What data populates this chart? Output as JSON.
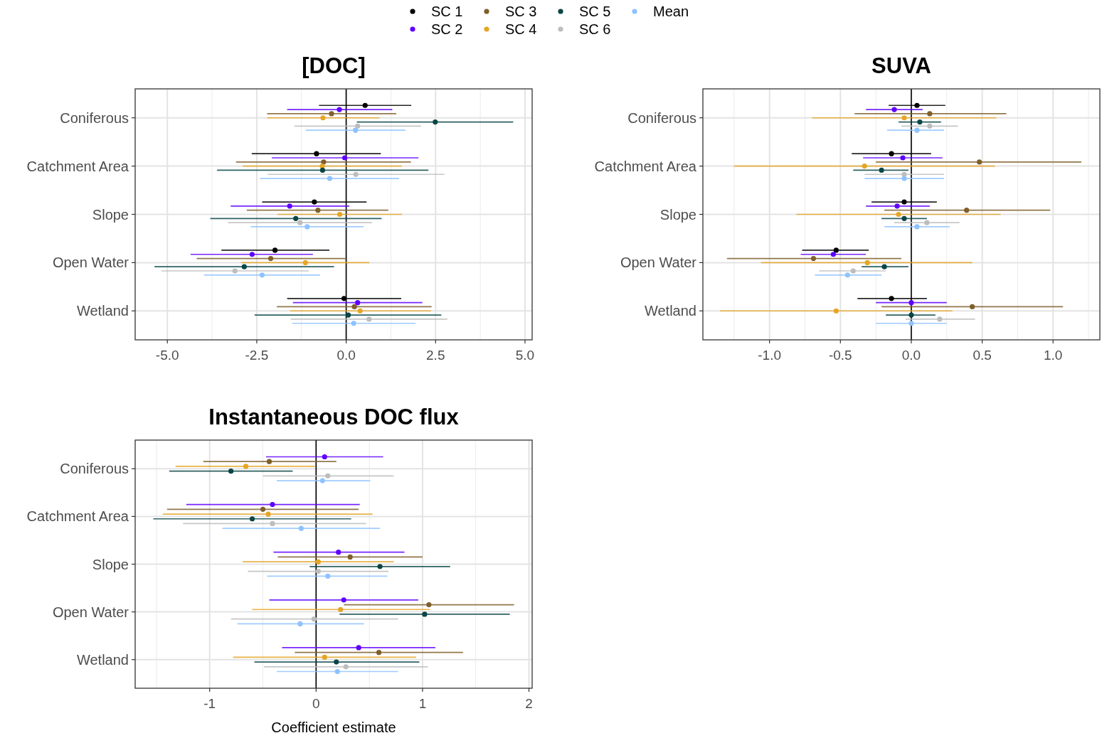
{
  "chart_data": [
    {
      "type": "scatter",
      "orientation": "horizontal",
      "title": "[DOC]",
      "categories": [
        "Coniferous",
        "Catchment Area",
        "Slope",
        "Open Water",
        "Wetland"
      ],
      "xlim": [
        -5.9,
        5.2
      ],
      "xticks": [
        {
          "value": -5,
          "label": "-5.0"
        },
        {
          "value": -2.5,
          "label": "-2.5"
        },
        {
          "value": 0,
          "label": "0.0"
        },
        {
          "value": 2.5,
          "label": "2.5"
        },
        {
          "value": 5,
          "label": "5.0"
        }
      ],
      "grid": true,
      "legend": "top",
      "marker": "circle",
      "ref_lines": [
        {
          "axis": "x",
          "value": 0,
          "color": "#000000"
        }
      ],
      "series": [
        {
          "name": "SC 1",
          "color": "#000000",
          "values": [
            0.53,
            -0.83,
            -0.89,
            -1.99,
            -0.06
          ],
          "errors": [
            [
              -0.76,
              1.82
            ],
            [
              -2.64,
              0.97
            ],
            [
              -2.35,
              0.57
            ],
            [
              -3.49,
              -0.47
            ],
            [
              -1.65,
              1.54
            ]
          ]
        },
        {
          "name": "SC 2",
          "color": "#5f00ff",
          "values": [
            -0.19,
            -0.04,
            -1.58,
            -2.63,
            0.32
          ],
          "errors": [
            [
              -1.65,
              1.29
            ],
            [
              -2.08,
              2.02
            ],
            [
              -3.23,
              0.09
            ],
            [
              -4.35,
              -0.93
            ],
            [
              -1.49,
              2.13
            ]
          ]
        },
        {
          "name": "SC 3",
          "color": "#7f5f2a",
          "values": [
            -0.41,
            -0.63,
            -0.79,
            -2.11,
            0.23
          ],
          "errors": [
            [
              -2.21,
              1.4
            ],
            [
              -3.08,
              1.81
            ],
            [
              -2.78,
              1.18
            ],
            [
              -4.18,
              -0.02
            ],
            [
              -1.94,
              2.39
            ]
          ]
        },
        {
          "name": "SC 4",
          "color": "#e5a526",
          "values": [
            -0.65,
            -0.67,
            -0.18,
            -1.14,
            0.39
          ],
          "errors": [
            [
              -2.21,
              0.93
            ],
            [
              -2.89,
              1.55
            ],
            [
              -1.92,
              1.56
            ],
            [
              -2.94,
              0.65
            ],
            [
              -1.57,
              2.37
            ]
          ]
        },
        {
          "name": "SC 5",
          "color": "#0b4545",
          "values": [
            2.49,
            -0.66,
            -1.41,
            -2.85,
            0.06
          ],
          "errors": [
            [
              0.3,
              4.67
            ],
            [
              -3.61,
              2.3
            ],
            [
              -3.8,
              0.99
            ],
            [
              -5.36,
              -0.34
            ],
            [
              -2.56,
              2.66
            ]
          ]
        },
        {
          "name": "SC 6",
          "color": "#bdbdbd",
          "values": [
            0.32,
            0.27,
            -1.29,
            -3.11,
            0.64
          ],
          "errors": [
            [
              -1.45,
              2.09
            ],
            [
              -2.2,
              2.75
            ],
            [
              -3.3,
              0.72
            ],
            [
              -5.17,
              -1.05
            ],
            [
              -1.55,
              2.83
            ]
          ]
        },
        {
          "name": "Mean",
          "color": "#8fc3ff",
          "values": [
            0.26,
            -0.46,
            -1.09,
            -2.35,
            0.21
          ],
          "errors": [
            [
              -1.13,
              1.66
            ],
            [
              -2.41,
              1.48
            ],
            [
              -2.67,
              0.49
            ],
            [
              -3.97,
              -0.73
            ],
            [
              -1.51,
              1.94
            ]
          ]
        }
      ]
    },
    {
      "type": "scatter",
      "orientation": "horizontal",
      "title": "SUVA",
      "categories": [
        "Coniferous",
        "Catchment Area",
        "Slope",
        "Open Water",
        "Wetland"
      ],
      "xlim": [
        -1.47,
        1.33
      ],
      "xticks": [
        {
          "value": -1,
          "label": "-1.0"
        },
        {
          "value": -0.5,
          "label": "-0.5"
        },
        {
          "value": 0,
          "label": "0.0"
        },
        {
          "value": 0.5,
          "label": "0.5"
        },
        {
          "value": 1,
          "label": "1.0"
        }
      ],
      "grid": true,
      "legend": "top",
      "marker": "circle",
      "ref_lines": [
        {
          "axis": "x",
          "value": 0,
          "color": "#000000"
        }
      ],
      "series": [
        {
          "name": "SC 1",
          "color": "#000000",
          "values": [
            0.04,
            -0.14,
            -0.05,
            -0.53,
            -0.14
          ],
          "errors": [
            [
              -0.16,
              0.24
            ],
            [
              -0.42,
              0.14
            ],
            [
              -0.28,
              0.18
            ],
            [
              -0.77,
              -0.3
            ],
            [
              -0.38,
              0.11
            ]
          ]
        },
        {
          "name": "SC 2",
          "color": "#5f00ff",
          "values": [
            -0.12,
            -0.06,
            -0.1,
            -0.55,
            0
          ],
          "errors": [
            [
              -0.32,
              0.08
            ],
            [
              -0.34,
              0.22
            ],
            [
              -0.32,
              0.13
            ],
            [
              -0.78,
              -0.32
            ],
            [
              -0.25,
              0.25
            ]
          ]
        },
        {
          "name": "SC 3",
          "color": "#7f5f2a",
          "values": [
            0.13,
            0.48,
            0.39,
            -0.69,
            0.43
          ],
          "errors": [
            [
              -0.4,
              0.67
            ],
            [
              -0.25,
              1.2
            ],
            [
              -0.19,
              0.98
            ],
            [
              -1.3,
              -0.07
            ],
            [
              -0.21,
              1.07
            ]
          ]
        },
        {
          "name": "SC 4",
          "color": "#e5a526",
          "values": [
            -0.05,
            -0.33,
            -0.09,
            -0.31,
            -0.53
          ],
          "errors": [
            [
              -0.7,
              0.6
            ],
            [
              -1.25,
              0.59
            ],
            [
              -0.81,
              0.63
            ],
            [
              -1.06,
              0.43
            ],
            [
              -1.35,
              0.29
            ]
          ]
        },
        {
          "name": "SC 5",
          "color": "#0b4545",
          "values": [
            0.06,
            -0.21,
            -0.05,
            -0.19,
            0
          ],
          "errors": [
            [
              -0.09,
              0.21
            ],
            [
              -0.41,
              -0.02
            ],
            [
              -0.21,
              0.11
            ],
            [
              -0.35,
              -0.02
            ],
            [
              -0.18,
              0.17
            ]
          ]
        },
        {
          "name": "SC 6",
          "color": "#bdbdbd",
          "values": [
            0.13,
            -0.05,
            0.11,
            -0.41,
            0.2
          ],
          "errors": [
            [
              -0.07,
              0.33
            ],
            [
              -0.33,
              0.23
            ],
            [
              -0.12,
              0.34
            ],
            [
              -0.65,
              -0.18
            ],
            [
              -0.04,
              0.45
            ]
          ]
        },
        {
          "name": "Mean",
          "color": "#8fc3ff",
          "values": [
            0.04,
            -0.05,
            0.04,
            -0.45,
            0
          ],
          "errors": [
            [
              -0.17,
              0.23
            ],
            [
              -0.33,
              0.23
            ],
            [
              -0.19,
              0.27
            ],
            [
              -0.68,
              -0.21
            ],
            [
              -0.25,
              0.25
            ]
          ]
        }
      ]
    },
    {
      "type": "scatter",
      "orientation": "horizontal",
      "title": "Instantaneous DOC flux",
      "xlabel": "Coefficient estimate",
      "categories": [
        "Coniferous",
        "Catchment Area",
        "Slope",
        "Open Water",
        "Wetland"
      ],
      "xlim": [
        -1.7,
        2.03
      ],
      "xticks": [
        -1,
        0,
        1,
        2
      ],
      "grid": true,
      "legend": "top",
      "marker": "circle",
      "ref_lines": [
        {
          "axis": "x",
          "value": 0,
          "color": "#000000"
        }
      ],
      "series": [
        {
          "name": "SC 2",
          "color": "#5f00ff",
          "values": [
            0.08,
            -0.41,
            0.21,
            0.26,
            0.4
          ],
          "errors": [
            [
              -0.47,
              0.63
            ],
            [
              -1.22,
              0.41
            ],
            [
              -0.4,
              0.83
            ],
            [
              -0.44,
              0.96
            ],
            [
              -0.32,
              1.12
            ]
          ]
        },
        {
          "name": "SC 3",
          "color": "#7f5f2a",
          "values": [
            -0.44,
            -0.5,
            0.32,
            1.06,
            0.59
          ],
          "errors": [
            [
              -1.06,
              0.19
            ],
            [
              -1.4,
              0.4
            ],
            [
              -0.36,
              1
            ],
            [
              0.26,
              1.86
            ],
            [
              -0.2,
              1.38
            ]
          ]
        },
        {
          "name": "SC 4",
          "color": "#e5a526",
          "values": [
            -0.66,
            -0.45,
            0.02,
            0.23,
            0.08
          ],
          "errors": [
            [
              -1.32,
              -0.01
            ],
            [
              -1.44,
              0.53
            ],
            [
              -0.69,
              0.73
            ],
            [
              -0.6,
              1.07
            ],
            [
              -0.78,
              0.94
            ]
          ]
        },
        {
          "name": "SC 5",
          "color": "#0b4545",
          "values": [
            -0.8,
            -0.6,
            0.6,
            1.02,
            0.19
          ],
          "errors": [
            [
              -1.38,
              -0.22
            ],
            [
              -1.53,
              0.33
            ],
            [
              -0.06,
              1.26
            ],
            [
              0.22,
              1.82
            ],
            [
              -0.58,
              0.97
            ]
          ]
        },
        {
          "name": "SC 6",
          "color": "#bdbdbd",
          "values": [
            0.11,
            -0.41,
            0.02,
            -0.02,
            0.28
          ],
          "errors": [
            [
              -0.5,
              0.73
            ],
            [
              -1.25,
              0.47
            ],
            [
              -0.64,
              0.68
            ],
            [
              -0.8,
              0.77
            ],
            [
              -0.49,
              1.05
            ]
          ]
        },
        {
          "name": "Mean",
          "color": "#8fc3ff",
          "values": [
            0.06,
            -0.14,
            0.11,
            -0.15,
            0.2
          ],
          "errors": [
            [
              -0.37,
              0.51
            ],
            [
              -0.88,
              0.6
            ],
            [
              -0.46,
              0.67
            ],
            [
              -0.74,
              0.45
            ],
            [
              -0.37,
              0.77
            ]
          ]
        }
      ]
    }
  ]
}
